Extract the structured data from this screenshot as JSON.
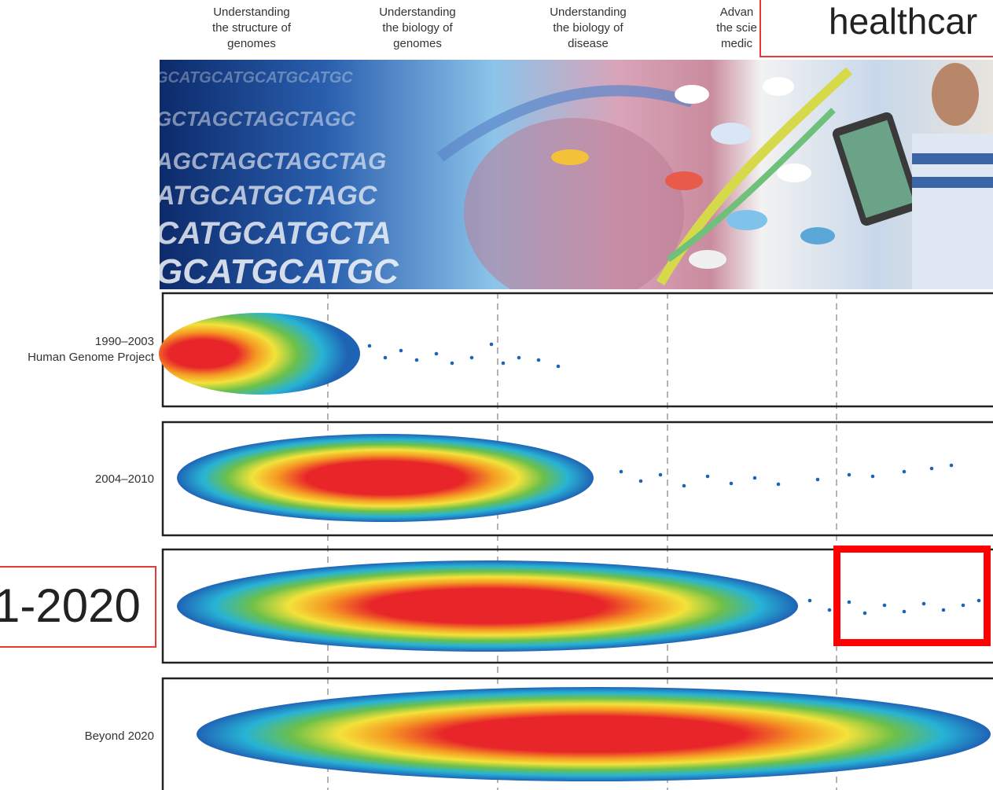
{
  "columns": [
    {
      "label": "Understanding\nthe structure of\ngenomes"
    },
    {
      "label": "Understanding\nthe biology of\ngenomes"
    },
    {
      "label": "Understanding\nthe biology of\ndisease"
    },
    {
      "label": "Advan\nthe scie\nmedic"
    }
  ],
  "overlays": {
    "top_box_text": "healthcar",
    "left_box_text": "1-2020"
  },
  "rows": [
    {
      "label": "1990–2003\nHuman Genome Project"
    },
    {
      "label": "2004–2010"
    },
    {
      "label": ""
    },
    {
      "label": "Beyond 2020"
    }
  ],
  "colors": {
    "dot_blue": "#1f63b5",
    "core_red": "#e8262a",
    "highlight_red": "#ff0000"
  }
}
